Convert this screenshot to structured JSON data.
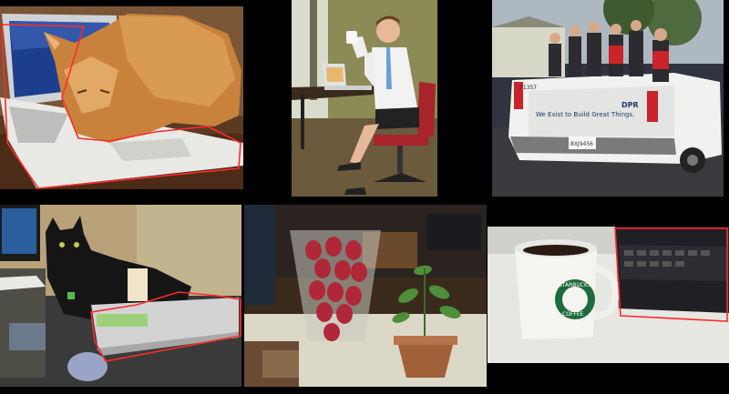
{
  "image": {
    "layout": "2x3 photo collage on black background",
    "outline_color": "#ff2a2a",
    "background_color": "#000000"
  },
  "panels": [
    {
      "subject": "orange tabby cat lying on a white laptop keyboard",
      "outlined_object": "laptop"
    },
    {
      "subject": "man in white shirt and tie seated on an office chair holding a mug, laptop on desk",
      "outlined_object": "none"
    },
    {
      "subject": "kids sitting in the bed of a white pickup truck",
      "outlined_object": "none"
    },
    {
      "subject": "black cat lying on a silver laptop on a cluttered desk",
      "outlined_object": "laptop"
    },
    {
      "subject": "glass vase of red foil-wrapped chocolate eggs beside a potted plant",
      "outlined_object": "none"
    },
    {
      "subject": "white coffee mug next to a laptop on a table",
      "outlined_object": "laptop"
    }
  ],
  "visible_text": {
    "truck_plate_top": "71357",
    "truck_tailgate_slogan": "We Exist to Build Great Things.",
    "truck_logo": "DPR",
    "truck_license_plate": "8XJ9456",
    "mug_brand": "STARBUCKS",
    "mug_subtext": "COFFEE"
  }
}
